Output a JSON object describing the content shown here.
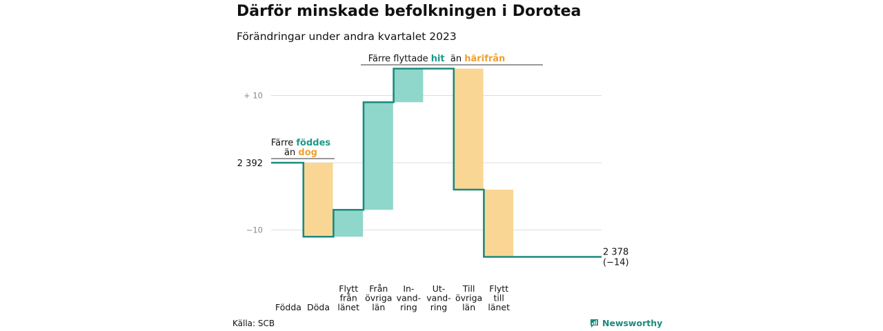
{
  "title": "Därför minskade befolkningen i Dorotea",
  "subtitle": "Förändringar under andra kvartalet 2023",
  "source": "Källa: SCB",
  "brand": "Newsworthy",
  "colors": {
    "increase": "#8fd6cb",
    "decrease": "#fad695",
    "line": "#1a8a7c",
    "accent_teal": "#1a9a88",
    "accent_orange": "#efa02c",
    "grid": "#dddddd",
    "tick": "#888888"
  },
  "chart_data": {
    "type": "waterfall",
    "start_value": 2392,
    "start_label": "2 392",
    "end_value": 2378,
    "end_label": "2 378",
    "end_change_label": "(−14)",
    "y_ticks": [
      {
        "value": 10,
        "label": "+ 10"
      },
      {
        "value": -10,
        "label": "−10"
      }
    ],
    "grid": true,
    "steps": [
      {
        "label_lines": [
          "Födda"
        ],
        "change": 0,
        "kind": "increase"
      },
      {
        "label_lines": [
          "Döda"
        ],
        "change": -11,
        "kind": "decrease"
      },
      {
        "label_lines": [
          "Flytt",
          "från",
          "länet"
        ],
        "change": 4,
        "kind": "increase"
      },
      {
        "label_lines": [
          "Från",
          "övriga",
          "län"
        ],
        "change": 16,
        "kind": "increase"
      },
      {
        "label_lines": [
          "In-",
          "vand-",
          "ring"
        ],
        "change": 5,
        "kind": "increase"
      },
      {
        "label_lines": [
          "Ut-",
          "vand-",
          "ring"
        ],
        "change": 0,
        "kind": "decrease"
      },
      {
        "label_lines": [
          "Till",
          "övriga",
          "län"
        ],
        "change": -18,
        "kind": "decrease"
      },
      {
        "label_lines": [
          "Flytt",
          "till",
          "länet"
        ],
        "change": -10,
        "kind": "decrease"
      }
    ],
    "annotations": [
      {
        "parts": [
          {
            "text": "Färre ",
            "color": "default"
          },
          {
            "text": "föddes",
            "color": "teal"
          }
        ],
        "parts2": [
          {
            "text": "än ",
            "color": "default"
          },
          {
            "text": "dog",
            "color": "orange"
          }
        ]
      },
      {
        "parts": [
          {
            "text": "Färre flyttade ",
            "color": "default"
          },
          {
            "text": "hit",
            "color": "teal"
          },
          {
            "text": "  än ",
            "color": "default"
          },
          {
            "text": "härifrån",
            "color": "orange"
          }
        ]
      }
    ]
  }
}
